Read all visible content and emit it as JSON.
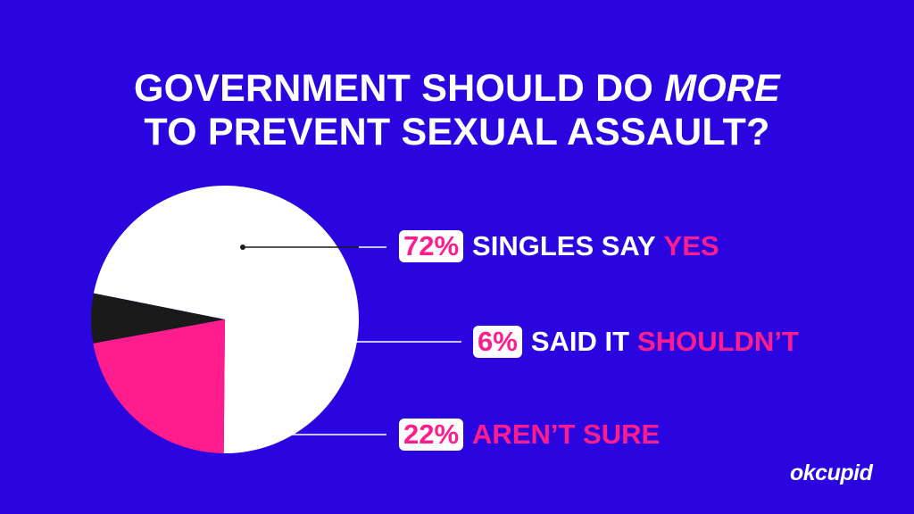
{
  "title": {
    "line1_prefix": "GOVERNMENT SHOULD DO ",
    "line1_emphasis": "MORE",
    "line2": "TO PREVENT SEXUAL ASSAULT?"
  },
  "chart_data": {
    "type": "pie",
    "title": "GOVERNMENT SHOULD DO MORE TO PREVENT SEXUAL ASSAULT?",
    "slices": [
      {
        "key": "yes",
        "percent_label": "72%",
        "text": "SINGLES SAY",
        "highlight": "YES",
        "value": 72,
        "color": "#ffffff"
      },
      {
        "key": "no",
        "percent_label": "6%",
        "text": "SAID IT",
        "highlight": "SHOULDN’T",
        "value": 6,
        "color": "#1a1a1a"
      },
      {
        "key": "unsure",
        "percent_label": "22%",
        "text": "",
        "highlight": "AREN’T SURE",
        "value": 22,
        "color": "#ff1d8e"
      }
    ]
  },
  "colors": {
    "background": "#2a05e0",
    "accent": "#ff1d8e",
    "text": "#ffffff",
    "leader": "#ffffff"
  },
  "brand": {
    "logo": "okcupid"
  }
}
